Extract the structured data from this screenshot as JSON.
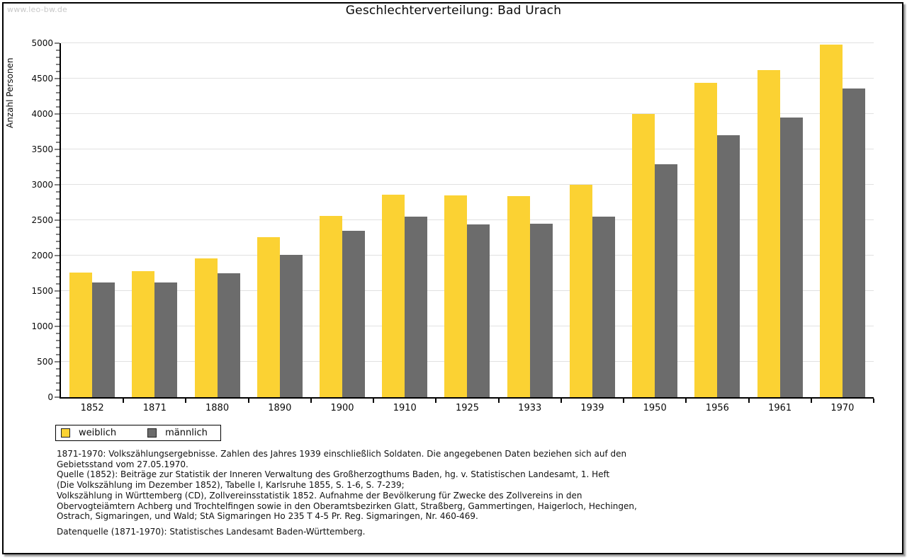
{
  "watermark": "www.leo-bw.de",
  "title": "Geschlechterverteilung: Bad Urach",
  "chart_data": {
    "type": "bar",
    "title": "Geschlechterverteilung: Bad Urach",
    "categories": [
      "1852",
      "1871",
      "1880",
      "1890",
      "1900",
      "1910",
      "1925",
      "1933",
      "1939",
      "1950",
      "1956",
      "1961",
      "1970"
    ],
    "series": [
      {
        "name": "weiblich",
        "color": "#fbd233",
        "values": [
          1760,
          1780,
          1960,
          2260,
          2560,
          2860,
          2850,
          2840,
          3000,
          4000,
          4440,
          4620,
          4980
        ]
      },
      {
        "name": "männlich",
        "color": "#6c6c6c",
        "values": [
          1620,
          1620,
          1750,
          2010,
          2350,
          2550,
          2440,
          2450,
          2550,
          3290,
          3700,
          3950,
          4360
        ]
      }
    ],
    "xlabel": "",
    "ylabel": "Anzahl Personen",
    "ylim": [
      0,
      5000
    ],
    "ytick_major": 500,
    "ytick_minor": 100,
    "grid": true,
    "gridline_color": "#e1e1e1",
    "legend_position": "bottom-left"
  },
  "footnotes": {
    "lines": [
      "1871-1970: Volkszählungsergebnisse. Zahlen des Jahres 1939 einschließlich Soldaten. Die angegebenen Daten beziehen sich auf den",
      "Gebietsstand vom 27.05.1970.",
      "Quelle (1852): Beiträge zur Statistik der Inneren Verwaltung des Großherzogthums Baden, hg. v. Statistischen Landesamt, 1. Heft",
      "(Die Volkszählung im Dezember 1852), Tabelle I, Karlsruhe 1855, S. 1-6, S. 7-239;",
      "Volkszählung in Württemberg (CD), Zollvereinsstatistik 1852. Aufnahme der Bevölkerung für Zwecke des Zollvereins in den",
      "Obervogteiämtern Achberg und Trochtelfingen sowie in den Oberamtsbezirken Glatt, Straßberg, Gammertingen, Haigerloch, Hechingen,",
      "Ostrach, Sigmaringen, und Wald; StA Sigmaringen Ho 235 T 4-5 Pr. Reg. Sigmaringen, Nr. 460-469."
    ],
    "datasource": "Datenquelle (1871-1970): Statistisches Landesamt Baden-Württemberg."
  }
}
